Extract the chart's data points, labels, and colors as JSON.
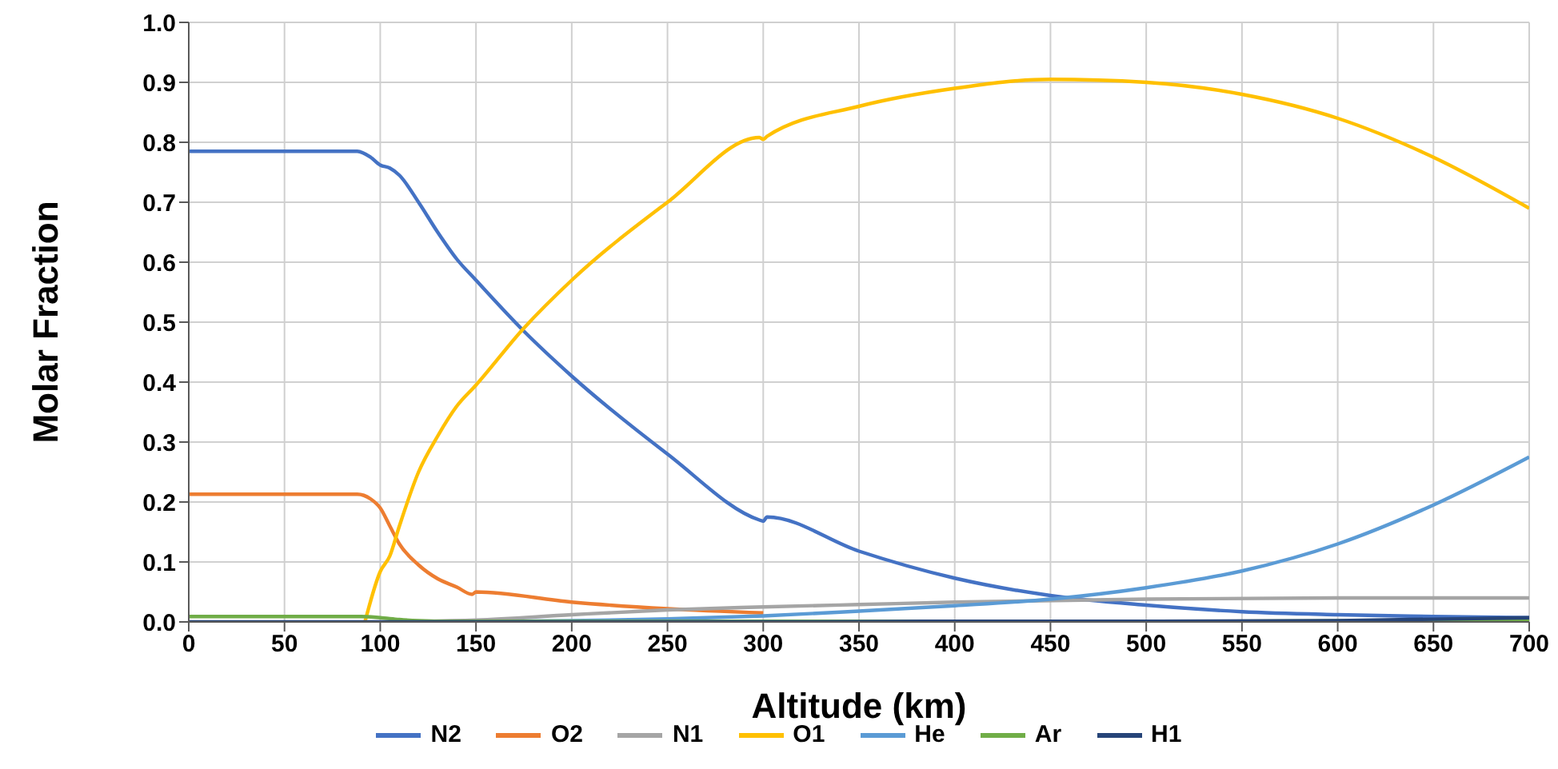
{
  "chart_data": {
    "type": "line",
    "xlabel": "Altitude (km)",
    "ylabel": "Molar Fraction",
    "xlim": [
      0,
      700
    ],
    "xticks": [
      0,
      50,
      100,
      150,
      200,
      250,
      300,
      350,
      400,
      450,
      500,
      550,
      600,
      650,
      700
    ],
    "ylim": [
      0,
      1
    ],
    "yticks": [
      {
        "value": 0,
        "label": "0.0"
      },
      {
        "value": 0.1,
        "label": "0.1"
      },
      {
        "value": 0.2,
        "label": "0.2"
      },
      {
        "value": 0.3,
        "label": "0.3"
      },
      {
        "value": 0.4,
        "label": "0.4"
      },
      {
        "value": 0.5,
        "label": "0.5"
      },
      {
        "value": 0.6,
        "label": "0.6"
      },
      {
        "value": 0.7,
        "label": "0.7"
      },
      {
        "value": 0.8,
        "label": "0.8"
      },
      {
        "value": 0.9,
        "label": "0.9"
      },
      {
        "value": 1,
        "label": "1.0"
      }
    ],
    "grid": true,
    "legend": "bottom",
    "marker": "none",
    "line_style": "solid",
    "series": [
      {
        "name": "N2",
        "color": "#4472c4",
        "x": [
          0,
          50,
          88,
          95,
          100,
          105,
          110,
          120,
          130,
          140,
          150,
          175,
          200,
          250,
          298,
          300,
          302,
          350,
          400,
          450,
          500,
          550,
          600,
          650,
          700
        ],
        "values": [
          0.785,
          0.785,
          0.785,
          0.775,
          0.762,
          0.757,
          0.745,
          0.7,
          0.65,
          0.605,
          0.57,
          0.485,
          0.41,
          0.28,
          0.17,
          0.168,
          0.175,
          0.118,
          0.073,
          0.044,
          0.028,
          0.017,
          0.012,
          0.009,
          0.007
        ]
      },
      {
        "name": "O2",
        "color": "#ed7d31",
        "x": [
          0,
          50,
          88,
          95,
          100,
          105,
          110,
          120,
          130,
          140,
          148,
          150,
          200,
          250,
          300
        ],
        "values": [
          0.213,
          0.213,
          0.213,
          0.205,
          0.19,
          0.16,
          0.13,
          0.095,
          0.072,
          0.058,
          0.046,
          0.05,
          0.033,
          0.022,
          0.015
        ]
      },
      {
        "name": "N1",
        "color": "#a5a5a5",
        "x": [
          120,
          150,
          200,
          250,
          300,
          350,
          400,
          500,
          600,
          700
        ],
        "values": [
          0.001,
          0.003,
          0.012,
          0.02,
          0.025,
          0.029,
          0.033,
          0.038,
          0.04,
          0.04
        ]
      },
      {
        "name": "O1",
        "color": "#ffc000",
        "x": [
          92,
          100,
          105,
          110,
          120,
          130,
          140,
          150,
          175,
          200,
          250,
          298,
          300,
          302,
          350,
          400,
          450,
          500,
          550,
          600,
          650,
          700
        ],
        "values": [
          0,
          0.084,
          0.11,
          0.16,
          0.25,
          0.31,
          0.36,
          0.395,
          0.49,
          0.57,
          0.7,
          0.808,
          0.805,
          0.81,
          0.86,
          0.89,
          0.905,
          0.9,
          0.88,
          0.84,
          0.775,
          0.69
        ]
      },
      {
        "name": "He",
        "color": "#5b9bd5",
        "x": [
          150,
          200,
          250,
          300,
          350,
          400,
          450,
          500,
          550,
          600,
          650,
          700
        ],
        "values": [
          0.001,
          0.002,
          0.005,
          0.01,
          0.018,
          0.027,
          0.038,
          0.057,
          0.085,
          0.13,
          0.195,
          0.275
        ]
      },
      {
        "name": "Ar",
        "color": "#70ad47",
        "x": [
          0,
          50,
          90,
          100,
          110,
          120,
          130,
          150,
          300,
          500,
          700
        ],
        "values": [
          0.009,
          0.009,
          0.009,
          0.007,
          0.004,
          0.002,
          0.001,
          0.001,
          0.001,
          0.001,
          0.003
        ]
      },
      {
        "name": "H1",
        "color": "#264478",
        "x": [
          0,
          100,
          200,
          300,
          400,
          500,
          600,
          700
        ],
        "values": [
          0,
          0,
          0,
          0,
          0.001,
          0.001,
          0.002,
          0.007
        ]
      }
    ]
  }
}
